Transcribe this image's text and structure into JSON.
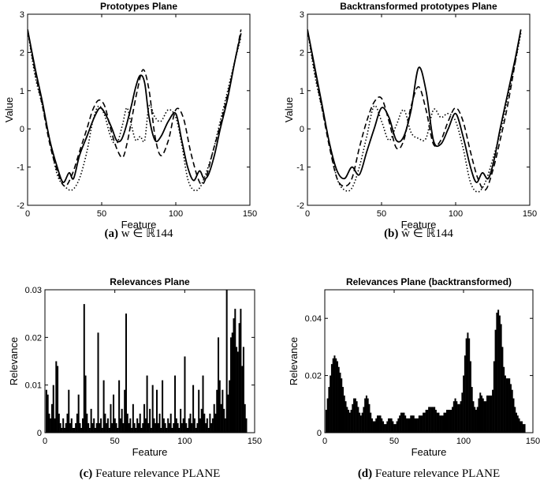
{
  "chart_data": [
    {
      "type": "line",
      "title": "Prototypes Plane",
      "xlabel": "Feature",
      "ylabel": "Value",
      "xlim": [
        0,
        150
      ],
      "ylim": [
        -2,
        3
      ],
      "xticks": [
        0,
        50,
        100,
        150
      ],
      "yticks": [
        -2,
        -1,
        0,
        1,
        2,
        3
      ],
      "caption_label": "(a)",
      "caption_text": "w ∈ ℝ144",
      "series": [
        {
          "style": "solid",
          "x": [
            0,
            5,
            10,
            15,
            20,
            24,
            28,
            31,
            35,
            40,
            45,
            49,
            53,
            57,
            60,
            63,
            66,
            70,
            73,
            76,
            79,
            82,
            86,
            90,
            95,
            100,
            104,
            108,
            112,
            116,
            119,
            122,
            126,
            130,
            135,
            140,
            144
          ],
          "y": [
            2.6,
            1.6,
            0.7,
            -0.3,
            -1.0,
            -1.4,
            -1.15,
            -1.3,
            -0.7,
            -0.2,
            0.3,
            0.55,
            0.35,
            0.0,
            -0.3,
            -0.3,
            0.0,
            0.6,
            1.1,
            1.4,
            1.2,
            0.3,
            -0.3,
            -0.2,
            0.2,
            0.4,
            -0.3,
            -1.0,
            -1.35,
            -1.1,
            -1.3,
            -1.2,
            -0.7,
            0.0,
            0.8,
            1.8,
            2.5
          ]
        },
        {
          "style": "dashed",
          "x": [
            0,
            5,
            10,
            15,
            20,
            25,
            30,
            35,
            40,
            44,
            48,
            52,
            56,
            60,
            64,
            67,
            70,
            74,
            78,
            82,
            86,
            90,
            95,
            100,
            105,
            110,
            115,
            118,
            121,
            125,
            130,
            135,
            140,
            144
          ],
          "y": [
            2.6,
            1.5,
            0.6,
            -0.4,
            -1.1,
            -1.5,
            -1.2,
            -0.6,
            0.0,
            0.5,
            0.75,
            0.6,
            0.0,
            -0.5,
            -0.75,
            -0.4,
            0.2,
            1.0,
            1.55,
            1.0,
            -0.2,
            -0.7,
            -0.3,
            0.5,
            0.3,
            -0.6,
            -1.3,
            -1.45,
            -1.2,
            -0.6,
            0.1,
            0.9,
            1.8,
            2.6
          ]
        },
        {
          "style": "dotted",
          "x": [
            0,
            5,
            10,
            15,
            20,
            25,
            30,
            35,
            40,
            44,
            48,
            52,
            56,
            60,
            64,
            67,
            70,
            73,
            76,
            79,
            82,
            86,
            90,
            95,
            100,
            104,
            108,
            112,
            116,
            120,
            125,
            130,
            135,
            140,
            144
          ],
          "y": [
            2.6,
            1.4,
            0.6,
            -0.3,
            -1.2,
            -1.5,
            -1.6,
            -1.3,
            -0.6,
            0.2,
            0.6,
            0.35,
            -0.2,
            -0.4,
            0.1,
            0.55,
            0.1,
            -0.3,
            -0.2,
            -0.3,
            0.6,
            0.3,
            0.2,
            0.5,
            0.3,
            -0.4,
            -1.3,
            -1.6,
            -1.55,
            -1.2,
            -0.6,
            0.2,
            1.0,
            1.8,
            2.4
          ]
        }
      ]
    },
    {
      "type": "line",
      "title": "Backtransformed prototypes Plane",
      "xlabel": "Feature",
      "ylabel": "Value",
      "xlim": [
        0,
        150
      ],
      "ylim": [
        -2,
        3
      ],
      "xticks": [
        0,
        50,
        100,
        150
      ],
      "yticks": [
        -2,
        -1,
        0,
        1,
        2,
        3
      ],
      "caption_label": "(b)",
      "caption_text": "ŵ ∈ ℝ144",
      "series": [
        {
          "style": "solid",
          "x": [
            0,
            5,
            10,
            15,
            20,
            25,
            30,
            35,
            40,
            45,
            50,
            55,
            60,
            65,
            70,
            75,
            80,
            85,
            90,
            95,
            100,
            105,
            110,
            114,
            118,
            122,
            126,
            130,
            135,
            140,
            144
          ],
          "y": [
            2.6,
            1.6,
            0.6,
            -0.4,
            -1.1,
            -1.3,
            -1.0,
            -1.2,
            -0.6,
            0.0,
            0.55,
            0.3,
            -0.3,
            -0.2,
            0.5,
            1.6,
            1.0,
            -0.3,
            -0.4,
            0.0,
            0.4,
            -0.2,
            -1.0,
            -1.4,
            -1.15,
            -1.3,
            -0.8,
            0.0,
            0.9,
            1.8,
            2.6
          ]
        },
        {
          "style": "dashed",
          "x": [
            0,
            5,
            10,
            15,
            20,
            25,
            30,
            35,
            40,
            45,
            50,
            55,
            60,
            65,
            70,
            75,
            80,
            85,
            90,
            95,
            100,
            105,
            110,
            115,
            120,
            125,
            130,
            135,
            140,
            144
          ],
          "y": [
            2.6,
            1.5,
            0.5,
            -0.5,
            -1.3,
            -1.5,
            -1.3,
            -0.5,
            0.2,
            0.7,
            0.8,
            0.2,
            -0.5,
            -0.3,
            0.6,
            1.1,
            0.5,
            -0.4,
            -0.3,
            0.2,
            0.55,
            0.2,
            -0.6,
            -1.3,
            -1.6,
            -1.1,
            -0.3,
            0.6,
            1.7,
            2.6
          ]
        },
        {
          "style": "dotted",
          "x": [
            0,
            5,
            10,
            15,
            20,
            25,
            30,
            35,
            40,
            45,
            50,
            55,
            60,
            65,
            70,
            75,
            80,
            85,
            90,
            95,
            100,
            105,
            110,
            115,
            120,
            125,
            130,
            135,
            140,
            144
          ],
          "y": [
            2.6,
            1.4,
            0.5,
            -0.4,
            -1.3,
            -1.6,
            -1.55,
            -1.0,
            -0.2,
            0.6,
            0.2,
            -0.3,
            0.1,
            0.5,
            -0.1,
            -0.25,
            -0.25,
            0.5,
            0.3,
            0.4,
            0.2,
            -0.5,
            -1.4,
            -1.65,
            -1.4,
            -0.8,
            -0.1,
            0.8,
            1.7,
            2.5
          ]
        }
      ]
    },
    {
      "type": "bar",
      "title": "Relevances Plane",
      "xlabel": "Feature",
      "ylabel": "Relevance",
      "xlim": [
        0,
        150
      ],
      "ylim": [
        0,
        0.03
      ],
      "xticks": [
        0,
        50,
        100,
        150
      ],
      "yticks": [
        0,
        0.01,
        0.02,
        0.03
      ],
      "caption_label": "(c)",
      "caption_text": "Feature relevance PLANE",
      "x_start": 1,
      "values": [
        0.009,
        0.008,
        0.004,
        0.003,
        0.006,
        0.01,
        0.003,
        0.015,
        0.014,
        0.004,
        0.002,
        0.001,
        0.003,
        0.001,
        0.002,
        0.004,
        0.009,
        0.002,
        0.003,
        0.001,
        0.001,
        0.002,
        0.004,
        0.008,
        0.002,
        0.001,
        0.003,
        0.027,
        0.012,
        0.004,
        0.002,
        0.001,
        0.005,
        0.002,
        0.003,
        0.001,
        0.002,
        0.021,
        0.002,
        0.003,
        0.001,
        0.011,
        0.004,
        0.002,
        0.003,
        0.001,
        0.006,
        0.002,
        0.008,
        0.003,
        0.002,
        0.001,
        0.011,
        0.003,
        0.005,
        0.002,
        0.009,
        0.025,
        0.004,
        0.002,
        0.003,
        0.001,
        0.006,
        0.002,
        0.001,
        0.003,
        0.002,
        0.004,
        0.001,
        0.002,
        0.006,
        0.003,
        0.012,
        0.002,
        0.005,
        0.001,
        0.01,
        0.003,
        0.002,
        0.009,
        0.002,
        0.004,
        0.001,
        0.011,
        0.003,
        0.002,
        0.001,
        0.003,
        0.002,
        0.004,
        0.001,
        0.002,
        0.012,
        0.003,
        0.002,
        0.001,
        0.005,
        0.002,
        0.003,
        0.016,
        0.002,
        0.001,
        0.003,
        0.004,
        0.002,
        0.01,
        0.003,
        0.001,
        0.002,
        0.009,
        0.003,
        0.005,
        0.012,
        0.004,
        0.002,
        0.003,
        0.001,
        0.004,
        0.002,
        0.003,
        0.006,
        0.004,
        0.009,
        0.02,
        0.011,
        0.006,
        0.009,
        0.005,
        0.003,
        0.03,
        0.008,
        0.011,
        0.02,
        0.021,
        0.024,
        0.026,
        0.018,
        0.017,
        0.023,
        0.026,
        0.014,
        0.018,
        0.006,
        0.003
      ]
    },
    {
      "type": "bar",
      "title": "Relevances Plane (backtransformed)",
      "xlabel": "Feature",
      "ylabel": "Relevance",
      "xlim": [
        0,
        150
      ],
      "ylim": [
        0,
        0.05
      ],
      "xticks": [
        0,
        50,
        100,
        150
      ],
      "yticks": [
        0,
        0.02,
        0.04
      ],
      "caption_label": "(d)",
      "caption_text": "Feature relevance PLANE",
      "x_start": 1,
      "values": [
        0.008,
        0.012,
        0.016,
        0.02,
        0.024,
        0.026,
        0.027,
        0.026,
        0.025,
        0.023,
        0.021,
        0.019,
        0.016,
        0.013,
        0.011,
        0.009,
        0.008,
        0.007,
        0.008,
        0.01,
        0.012,
        0.012,
        0.011,
        0.009,
        0.007,
        0.006,
        0.007,
        0.009,
        0.012,
        0.013,
        0.012,
        0.01,
        0.007,
        0.005,
        0.004,
        0.004,
        0.005,
        0.006,
        0.006,
        0.006,
        0.005,
        0.004,
        0.003,
        0.003,
        0.004,
        0.005,
        0.005,
        0.005,
        0.004,
        0.003,
        0.003,
        0.004,
        0.005,
        0.006,
        0.007,
        0.007,
        0.007,
        0.006,
        0.005,
        0.005,
        0.005,
        0.006,
        0.006,
        0.006,
        0.005,
        0.005,
        0.005,
        0.006,
        0.006,
        0.006,
        0.007,
        0.007,
        0.008,
        0.008,
        0.009,
        0.009,
        0.009,
        0.009,
        0.009,
        0.008,
        0.007,
        0.007,
        0.006,
        0.006,
        0.006,
        0.007,
        0.007,
        0.008,
        0.008,
        0.008,
        0.008,
        0.009,
        0.011,
        0.012,
        0.011,
        0.01,
        0.01,
        0.011,
        0.014,
        0.02,
        0.027,
        0.033,
        0.035,
        0.033,
        0.025,
        0.016,
        0.011,
        0.009,
        0.008,
        0.009,
        0.012,
        0.014,
        0.013,
        0.012,
        0.011,
        0.011,
        0.013,
        0.013,
        0.013,
        0.013,
        0.015,
        0.025,
        0.036,
        0.042,
        0.043,
        0.041,
        0.038,
        0.03,
        0.023,
        0.02,
        0.019,
        0.019,
        0.019,
        0.017,
        0.015,
        0.012,
        0.009,
        0.007,
        0.006,
        0.005,
        0.004,
        0.004,
        0.003,
        0.003
      ]
    }
  ]
}
